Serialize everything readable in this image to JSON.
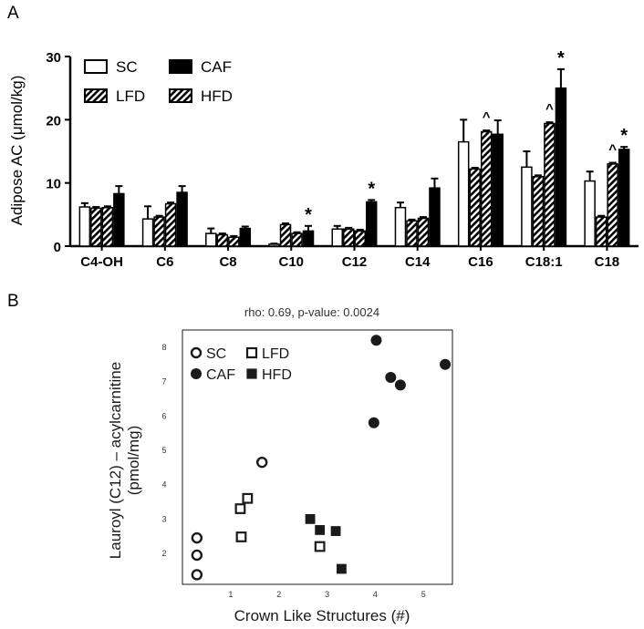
{
  "colors": {
    "black": "#000000",
    "white": "#ffffff",
    "dark": "#1a1a1a",
    "muted": "#333333"
  },
  "panel_a": {
    "label": "A",
    "chart_data": {
      "type": "bar",
      "ylabel": "Adipose AC (μmol/kg)",
      "ylim": [
        0,
        30
      ],
      "yticks": [
        "0",
        "10",
        "20",
        "30"
      ],
      "categories": [
        "C4-OH",
        "C6",
        "C8",
        "C10",
        "C12",
        "C14",
        "C16",
        "C18:1",
        "C18"
      ],
      "series": [
        {
          "name": "SC",
          "pattern": "white",
          "values": [
            6.2,
            4.3,
            2.0,
            0.3,
            2.7,
            6.1,
            16.5,
            12.5,
            10.3
          ],
          "errors": [
            0.6,
            2.0,
            0.8,
            0.1,
            0.5,
            0.8,
            3.5,
            2.5,
            1.5
          ]
        },
        {
          "name": "LFD",
          "pattern": "hatched",
          "values": [
            6.0,
            4.6,
            1.8,
            3.4,
            2.7,
            4.0,
            12.2,
            11.0,
            4.6
          ],
          "errors": [
            0.2,
            0.2,
            0.2,
            0.2,
            0.2,
            0.2,
            0.2,
            0.2,
            0.2
          ]
        },
        {
          "name": "HFD",
          "pattern": "hatched",
          "values": [
            6.1,
            6.7,
            1.4,
            2.0,
            2.4,
            4.4,
            18.1,
            19.4,
            13.0
          ],
          "errors": [
            0.2,
            0.2,
            0.2,
            0.2,
            0.2,
            0.2,
            0.2,
            0.2,
            0.2
          ]
        },
        {
          "name": "CAF",
          "pattern": "black",
          "values": [
            8.3,
            8.5,
            2.8,
            2.4,
            7.0,
            9.2,
            17.7,
            25.0,
            15.3
          ],
          "errors": [
            1.2,
            1.0,
            0.3,
            0.8,
            0.3,
            1.5,
            2.2,
            3.0,
            0.4
          ]
        }
      ],
      "annotations": [
        {
          "category": "C10",
          "series": "CAF",
          "text": "*"
        },
        {
          "category": "C12",
          "series": "CAF",
          "text": "*"
        },
        {
          "category": "C16",
          "series": "HFD",
          "text": "^"
        },
        {
          "category": "C18:1",
          "series": "HFD",
          "text": "^"
        },
        {
          "category": "C18:1",
          "series": "CAF",
          "text": "*"
        },
        {
          "category": "C18",
          "series": "HFD",
          "text": "^"
        },
        {
          "category": "C18",
          "series": "CAF",
          "text": "*"
        }
      ],
      "legend": {
        "placement": "top-left",
        "order": [
          "SC",
          "CAF",
          "LFD",
          "HFD"
        ]
      }
    }
  },
  "panel_b": {
    "label": "B",
    "chart_data": {
      "type": "scatter",
      "title": "rho: 0.69, p-value: 0.0024",
      "xlabel": "Crown Like Structures (#)",
      "ylabel_line1": "Lauroyl (C12) – acylcarnitine",
      "ylabel_line2": "(pmol/mg)",
      "xlim": [
        0,
        5.6
      ],
      "ylim": [
        1.1,
        8.5
      ],
      "xticks": [
        "1",
        "2",
        "3",
        "4",
        "5"
      ],
      "yticks": [
        "2",
        "3",
        "4",
        "5",
        "6",
        "7",
        "8"
      ],
      "series": [
        {
          "name": "SC",
          "marker": "open-circle",
          "x": [
            0.3,
            0.3,
            0.3,
            1.65
          ],
          "y": [
            2.45,
            1.95,
            1.38,
            4.65
          ]
        },
        {
          "name": "LFD",
          "marker": "open-square",
          "x": [
            1.35,
            1.2,
            1.22,
            2.85
          ],
          "y": [
            3.6,
            3.3,
            2.48,
            2.2
          ]
        },
        {
          "name": "CAF",
          "marker": "filled-circle",
          "x": [
            4.02,
            3.97,
            4.32,
            4.52,
            5.45
          ],
          "y": [
            8.2,
            5.8,
            7.12,
            6.9,
            7.5
          ]
        },
        {
          "name": "HFD",
          "marker": "filled-square",
          "x": [
            2.65,
            2.85,
            3.18,
            3.3
          ],
          "y": [
            3.0,
            2.68,
            2.65,
            1.55
          ]
        }
      ],
      "legend": {
        "placement": "top-left",
        "order": [
          "SC",
          "LFD",
          "CAF",
          "HFD"
        ]
      }
    }
  }
}
